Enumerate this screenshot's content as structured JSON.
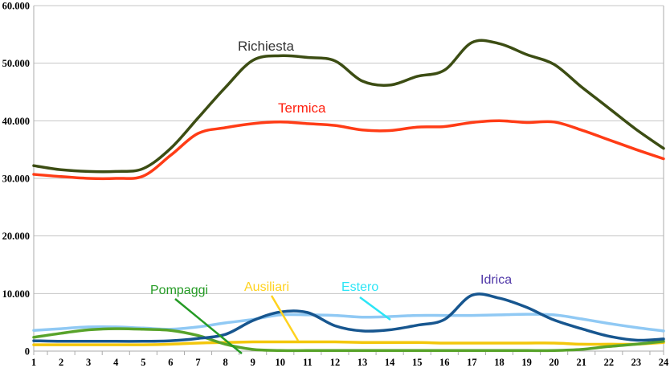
{
  "chart_data": {
    "type": "line",
    "title": "",
    "x_label": "",
    "y_label": "",
    "x_ticks": [
      "1",
      "2",
      "3",
      "4",
      "5",
      "6",
      "7",
      "8",
      "9",
      "10",
      "11",
      "12",
      "13",
      "14",
      "15",
      "16",
      "17",
      "18",
      "19",
      "20",
      "21",
      "22",
      "23",
      "24"
    ],
    "y_tick_labels": [
      "0",
      "10.000",
      "20.000",
      "30.000",
      "40.000",
      "50.000",
      "60.000"
    ],
    "ylim": [
      0,
      60000
    ],
    "ytick_step": 10000,
    "grid": "horizontal",
    "legend_position": "inline-annotations",
    "background_color": "#FFFFFF",
    "gridline_color": "#C6C6C6",
    "border_color": "#ABABAB",
    "series": [
      {
        "key": "richiesta",
        "label": "Richiesta",
        "line_color": "#3C4D13",
        "label_color": "#333333",
        "values": [
          32200,
          31500,
          31200,
          31200,
          31700,
          35200,
          40500,
          45800,
          50500,
          51300,
          51000,
          50400,
          46900,
          46200,
          47700,
          48800,
          53600,
          53400,
          51500,
          49800,
          45900,
          42200,
          38500,
          35200
        ]
      },
      {
        "key": "termica",
        "label": "Termica",
        "line_color": "#FF3C16",
        "label_color": "#FF2211",
        "values": [
          30700,
          30300,
          30000,
          30000,
          30400,
          34000,
          37800,
          38800,
          39500,
          39800,
          39500,
          39200,
          38400,
          38300,
          38900,
          39000,
          39700,
          40000,
          39700,
          39800,
          38400,
          36700,
          35000,
          33400
        ]
      },
      {
        "key": "pompaggi",
        "label": "Pompaggi",
        "line_color": "#58A32A",
        "label_color": "#259B25",
        "values": [
          2400,
          3100,
          3700,
          3900,
          3800,
          3600,
          2700,
          1200,
          300,
          100,
          100,
          100,
          100,
          100,
          100,
          100,
          100,
          100,
          100,
          100,
          300,
          800,
          1200,
          1700
        ]
      },
      {
        "key": "ausiliari",
        "label": "Ausiliari",
        "line_color": "#F3C70C",
        "label_color": "#FFD21E",
        "values": [
          1100,
          1100,
          1100,
          1100,
          1100,
          1200,
          1400,
          1500,
          1600,
          1600,
          1600,
          1600,
          1500,
          1500,
          1500,
          1400,
          1400,
          1400,
          1400,
          1400,
          1200,
          1200,
          1200,
          1500
        ]
      },
      {
        "key": "estero",
        "label": "Estero",
        "line_color": "#90C9F4",
        "label_color": "#2CE5F6",
        "values": [
          3600,
          3900,
          4200,
          4200,
          4000,
          3800,
          4200,
          4900,
          5500,
          6300,
          6300,
          6200,
          5900,
          6000,
          6200,
          6200,
          6200,
          6300,
          6400,
          6300,
          5600,
          4800,
          4100,
          3500
        ]
      },
      {
        "key": "idrica",
        "label": "Idrica",
        "line_color": "#17568F",
        "label_color": "#5038A8",
        "values": [
          1800,
          1700,
          1700,
          1700,
          1700,
          1800,
          2200,
          2900,
          5300,
          6800,
          6700,
          4400,
          3500,
          3700,
          4500,
          5500,
          9700,
          9200,
          7600,
          5400,
          3900,
          2600,
          1900,
          2100
        ]
      }
    ]
  }
}
